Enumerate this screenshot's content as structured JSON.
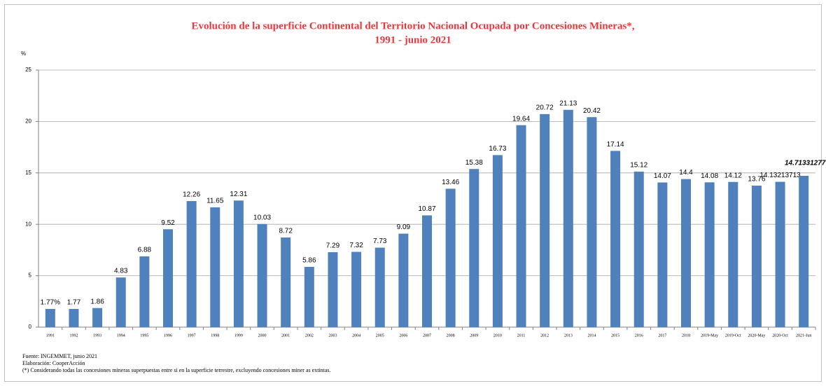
{
  "chart_data": {
    "type": "bar",
    "title": [
      "Evolución de la superficie Continental del Territorio Nacional Ocupada por Concesiones Mineras*,",
      "1991 - junio 2021"
    ],
    "ylabel": "%",
    "categories": [
      "1991",
      "1992",
      "1993",
      "1994",
      "1995",
      "1996",
      "1997",
      "1998",
      "1999",
      "2000",
      "2001",
      "2002",
      "2003",
      "2004",
      "2005",
      "2006",
      "2007",
      "2008",
      "2009",
      "2010",
      "2011",
      "2012",
      "2013",
      "2014",
      "2015",
      "2016",
      "2017",
      "2018",
      "2019-May",
      "2019-Oct",
      "2020-May",
      "2020-Oct",
      "2021-Jun"
    ],
    "values": [
      1.77,
      1.77,
      1.86,
      4.83,
      6.88,
      9.52,
      12.26,
      11.65,
      12.31,
      10.03,
      8.72,
      5.86,
      7.29,
      7.32,
      7.73,
      9.09,
      10.87,
      13.46,
      15.38,
      16.73,
      19.64,
      20.72,
      21.13,
      20.42,
      17.14,
      15.12,
      14.07,
      14.4,
      14.08,
      14.12,
      13.76,
      14.13213713,
      14.71331277
    ],
    "value_labels": [
      "1.77%",
      "1.77",
      "1.86",
      "4.83",
      "6.88",
      "9.52",
      "12.26",
      "11.65",
      "12.31",
      "10.03",
      "8.72",
      "5.86",
      "7.29",
      "7.32",
      "7.73",
      "9.09",
      "10.87",
      "13.46",
      "15.38",
      "16.73",
      "19.64",
      "20.72",
      "21.13",
      "20.42",
      "17.14",
      "15.12",
      "14.07",
      "14.4",
      "14.08",
      "14.12",
      "13.76",
      "14.13213713",
      "14.71331277"
    ],
    "color": "#4f81bd",
    "ylim": [
      0,
      25
    ],
    "yticks": [
      0,
      5,
      10,
      15,
      20,
      25
    ],
    "grid": true,
    "source": "Fuente: INGEMMET, junio 2021",
    "credit": "Elaboración: CooperAcción",
    "note": "(*) Considerando todas las concesiones mineras superpuestas entre si en la superficie terrestre, excluyendo concesiones miner as extintas."
  }
}
